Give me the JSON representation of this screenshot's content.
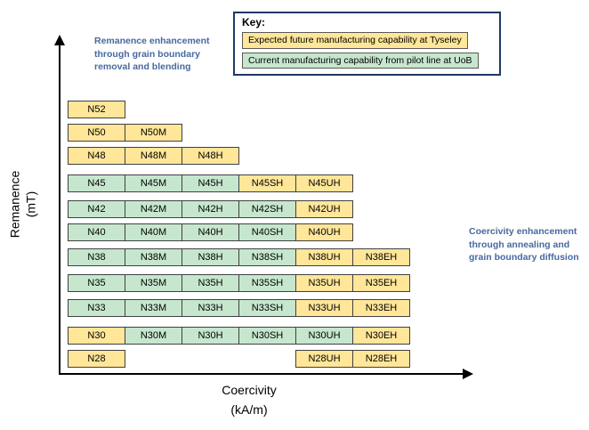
{
  "key": {
    "title": "Key:",
    "entries": [
      {
        "label": "Expected future manufacturing capability at Tyseley",
        "type": "future"
      },
      {
        "label": "Current manufacturing capability from pilot line at UoB",
        "type": "current"
      }
    ]
  },
  "annotations": {
    "remanence": "Remanence enhancement through grain boundary removal and blending",
    "coercivity": "Coercivity enhancement through annealing and grain boundary diffusion"
  },
  "axes": {
    "y_label_line1": "Remanence",
    "y_label_line2": "(mT)",
    "x_label_line1": "Coercivity",
    "x_label_line2": "(kA/m)"
  },
  "colors": {
    "future_fill": "#FFE699",
    "current_fill": "#C6E7CE",
    "cell_border": "#404040",
    "swatch_border": "#595959",
    "key_border": "#1F3864",
    "annotation_text": "#47699E",
    "axis": "#000000"
  },
  "chart_data": {
    "type": "grid",
    "x_axis": "Coercivity (kA/m)",
    "y_axis": "Remanence (mT)",
    "legend": {
      "future": "Expected future manufacturing capability at Tyseley",
      "current": "Current manufacturing capability from pilot line at UoB"
    },
    "rows": [
      {
        "cells": [
          {
            "label": "N52",
            "col": 1,
            "type": "future"
          }
        ]
      },
      {
        "cells": [
          {
            "label": "N50",
            "col": 1,
            "type": "future"
          },
          {
            "label": "N50M",
            "col": 2,
            "type": "future"
          }
        ]
      },
      {
        "cells": [
          {
            "label": "N48",
            "col": 1,
            "type": "future"
          },
          {
            "label": "N48M",
            "col": 2,
            "type": "future"
          },
          {
            "label": "N48H",
            "col": 3,
            "type": "future"
          }
        ]
      },
      {
        "cells": [
          {
            "label": "N45",
            "col": 1,
            "type": "current"
          },
          {
            "label": "N45M",
            "col": 2,
            "type": "current"
          },
          {
            "label": "N45H",
            "col": 3,
            "type": "current"
          },
          {
            "label": "N45SH",
            "col": 4,
            "type": "future"
          },
          {
            "label": "N45UH",
            "col": 5,
            "type": "future"
          }
        ]
      },
      {
        "cells": [
          {
            "label": "N42",
            "col": 1,
            "type": "current"
          },
          {
            "label": "N42M",
            "col": 2,
            "type": "current"
          },
          {
            "label": "N42H",
            "col": 3,
            "type": "current"
          },
          {
            "label": "N42SH",
            "col": 4,
            "type": "current"
          },
          {
            "label": "N42UH",
            "col": 5,
            "type": "future"
          }
        ]
      },
      {
        "cells": [
          {
            "label": "N40",
            "col": 1,
            "type": "current"
          },
          {
            "label": "N40M",
            "col": 2,
            "type": "current"
          },
          {
            "label": "N40H",
            "col": 3,
            "type": "current"
          },
          {
            "label": "N40SH",
            "col": 4,
            "type": "current"
          },
          {
            "label": "N40UH",
            "col": 5,
            "type": "future"
          }
        ]
      },
      {
        "cells": [
          {
            "label": "N38",
            "col": 1,
            "type": "current"
          },
          {
            "label": "N38M",
            "col": 2,
            "type": "current"
          },
          {
            "label": "N38H",
            "col": 3,
            "type": "current"
          },
          {
            "label": "N38SH",
            "col": 4,
            "type": "current"
          },
          {
            "label": "N38UH",
            "col": 5,
            "type": "future"
          },
          {
            "label": "N38EH",
            "col": 6,
            "type": "future"
          }
        ]
      },
      {
        "cells": [
          {
            "label": "N35",
            "col": 1,
            "type": "current"
          },
          {
            "label": "N35M",
            "col": 2,
            "type": "current"
          },
          {
            "label": "N35H",
            "col": 3,
            "type": "current"
          },
          {
            "label": "N35SH",
            "col": 4,
            "type": "current"
          },
          {
            "label": "N35UH",
            "col": 5,
            "type": "future"
          },
          {
            "label": "N35EH",
            "col": 6,
            "type": "future"
          }
        ]
      },
      {
        "cells": [
          {
            "label": "N33",
            "col": 1,
            "type": "current"
          },
          {
            "label": "N33M",
            "col": 2,
            "type": "current"
          },
          {
            "label": "N33H",
            "col": 3,
            "type": "current"
          },
          {
            "label": "N33SH",
            "col": 4,
            "type": "current"
          },
          {
            "label": "N33UH",
            "col": 5,
            "type": "future"
          },
          {
            "label": "N33EH",
            "col": 6,
            "type": "future"
          }
        ]
      },
      {
        "cells": [
          {
            "label": "N30",
            "col": 1,
            "type": "future"
          },
          {
            "label": "N30M",
            "col": 2,
            "type": "current"
          },
          {
            "label": "N30H",
            "col": 3,
            "type": "current"
          },
          {
            "label": "N30SH",
            "col": 4,
            "type": "current"
          },
          {
            "label": "N30UH",
            "col": 5,
            "type": "current"
          },
          {
            "label": "N30EH",
            "col": 6,
            "type": "future"
          }
        ]
      },
      {
        "cells": [
          {
            "label": "N28",
            "col": 1,
            "type": "future"
          },
          {
            "label": "N28UH",
            "col": 5,
            "type": "future"
          },
          {
            "label": "N28EH",
            "col": 6,
            "type": "future"
          }
        ]
      }
    ]
  }
}
